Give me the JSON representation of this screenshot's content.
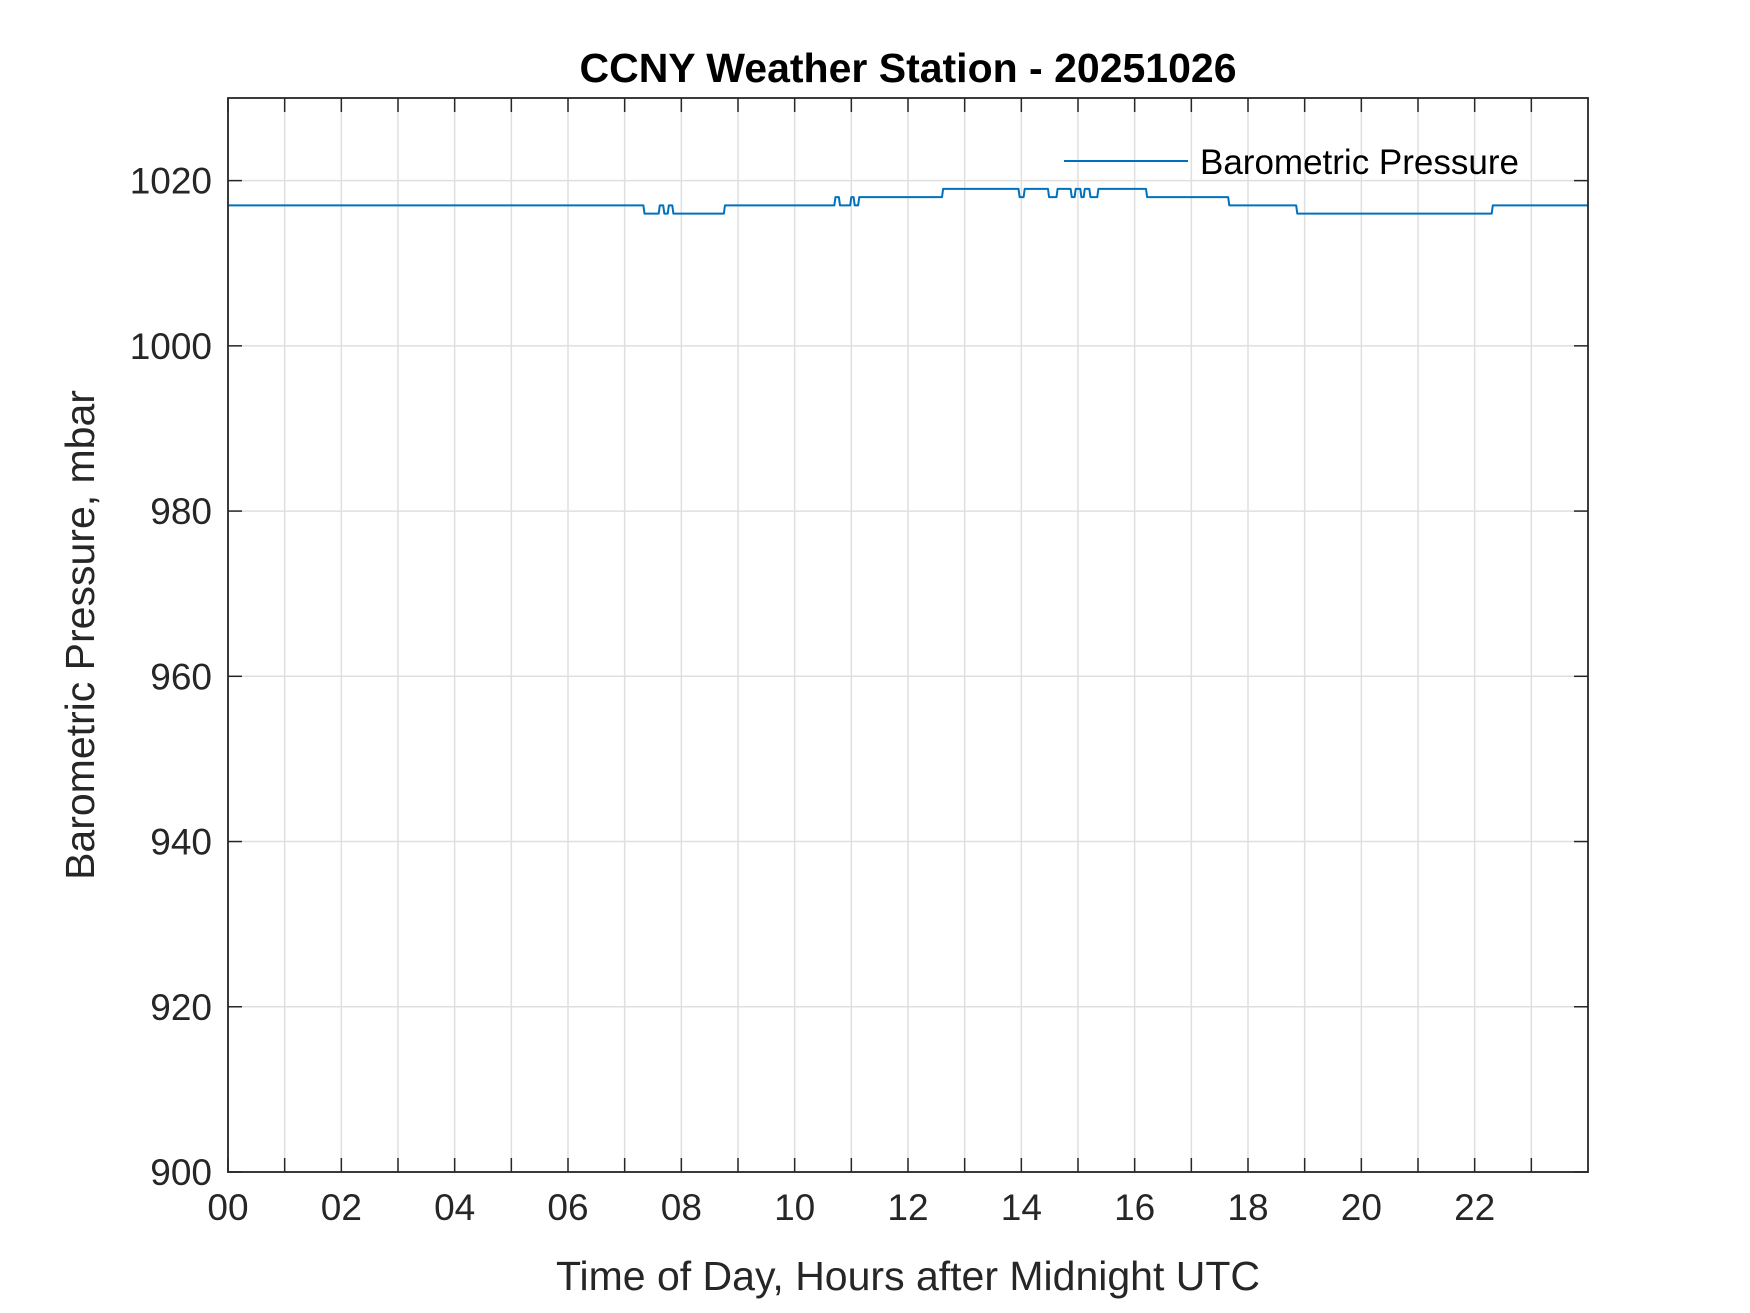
{
  "chart_data": {
    "type": "line",
    "title": "CCNY Weather Station - 20251026",
    "xlabel": "Time of Day, Hours after Midnight UTC",
    "ylabel": "Barometric Pressure, mbar",
    "xlim": [
      0,
      24
    ],
    "ylim": [
      900,
      1030
    ],
    "xticks": [
      0,
      1,
      2,
      3,
      4,
      5,
      6,
      7,
      8,
      9,
      10,
      11,
      12,
      13,
      14,
      15,
      16,
      17,
      18,
      19,
      20,
      21,
      22,
      23
    ],
    "xtick_labels": [
      "00",
      "",
      "02",
      "",
      "04",
      "",
      "06",
      "",
      "08",
      "",
      "10",
      "",
      "12",
      "",
      "14",
      "",
      "16",
      "",
      "18",
      "",
      "20",
      "",
      "22",
      ""
    ],
    "yticks": [
      900,
      920,
      940,
      960,
      980,
      1000,
      1020
    ],
    "ytick_labels": [
      "900",
      "920",
      "940",
      "960",
      "980",
      "1000",
      "1020"
    ],
    "grid": true,
    "legend_position": "top-right",
    "series_color": "#0072BD",
    "series": [
      {
        "name": "Barometric Pressure",
        "x": [
          0,
          7.33,
          7.35,
          7.6,
          7.62,
          7.68,
          7.7,
          7.76,
          7.78,
          7.84,
          7.86,
          8.75,
          8.77,
          10.7,
          10.72,
          10.78,
          10.8,
          10.98,
          11.0,
          11.04,
          11.06,
          11.12,
          11.14,
          12.6,
          12.62,
          13.95,
          13.97,
          14.04,
          14.06,
          14.47,
          14.49,
          14.62,
          14.64,
          14.87,
          14.89,
          14.94,
          14.96,
          15.04,
          15.06,
          15.1,
          15.12,
          15.2,
          15.22,
          15.34,
          15.36,
          16.2,
          16.22,
          17.65,
          17.67,
          18.85,
          18.87,
          22.3,
          22.32,
          24
        ],
        "values": [
          1017,
          1017,
          1016,
          1016,
          1017,
          1017,
          1016,
          1016,
          1017,
          1017,
          1016,
          1016,
          1017,
          1017,
          1018,
          1018,
          1017,
          1017,
          1018,
          1018,
          1017,
          1017,
          1018,
          1018,
          1019,
          1019,
          1018,
          1018,
          1019,
          1019,
          1018,
          1018,
          1019,
          1019,
          1018,
          1018,
          1019,
          1019,
          1018,
          1018,
          1019,
          1019,
          1018,
          1018,
          1019,
          1019,
          1018,
          1018,
          1017,
          1017,
          1016,
          1016,
          1017,
          1017
        ]
      }
    ]
  }
}
